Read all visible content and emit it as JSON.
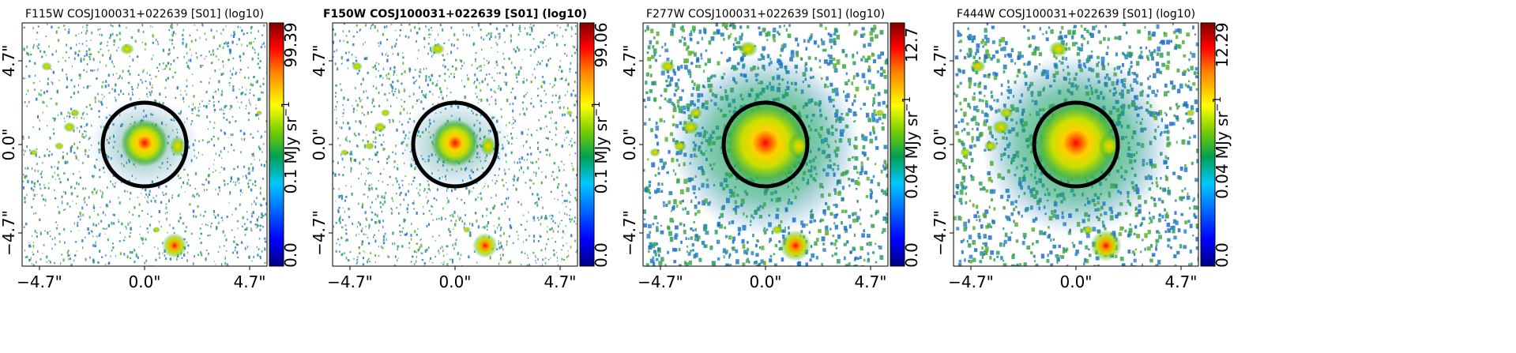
{
  "panels": [
    {
      "title": "F115W COSJ100031+022639 [S01] (log10)",
      "title_bold": false,
      "cbar_min": "0.0",
      "cbar_mid": "0.1",
      "cbar_max": "99.39",
      "cbar_unit": "MJy sr",
      "cbar_exp": "−1",
      "texture_density": 0.55,
      "halo": "small"
    },
    {
      "title": "F150W COSJ100031+022639 [S01] (log10)",
      "title_bold": true,
      "cbar_min": "0.0",
      "cbar_mid": "0.1",
      "cbar_max": "99.06",
      "cbar_unit": "MJy sr",
      "cbar_exp": "−1",
      "texture_density": 0.6,
      "halo": "small"
    },
    {
      "title": "F277W COSJ100031+022639 [S01] (log10)",
      "title_bold": false,
      "cbar_min": "0.0",
      "cbar_mid": "0.04",
      "cbar_max": "12.7",
      "cbar_unit": "MJy sr",
      "cbar_exp": "−1",
      "texture_density": 0.5,
      "halo": "large"
    },
    {
      "title": "F444W COSJ100031+022639 [S01] (log10)",
      "title_bold": false,
      "cbar_min": "0.0",
      "cbar_mid": "0.04",
      "cbar_max": "12.29",
      "cbar_unit": "MJy sr",
      "cbar_exp": "−1",
      "texture_density": 0.5,
      "halo": "large"
    }
  ],
  "x_ticks": [
    "−4.7\"",
    "0.0\"",
    "4.7\""
  ],
  "y_ticks": [
    "4.7\"",
    "0.0\"",
    "−4.7\""
  ],
  "colors": {
    "ring": "#000000",
    "colormap": [
      "#00007f",
      "#0000ff",
      "#007fff",
      "#00bfbf",
      "#00a000",
      "#7fcf00",
      "#ffff00",
      "#ff7f00",
      "#ff0000",
      "#7f0000"
    ]
  }
}
